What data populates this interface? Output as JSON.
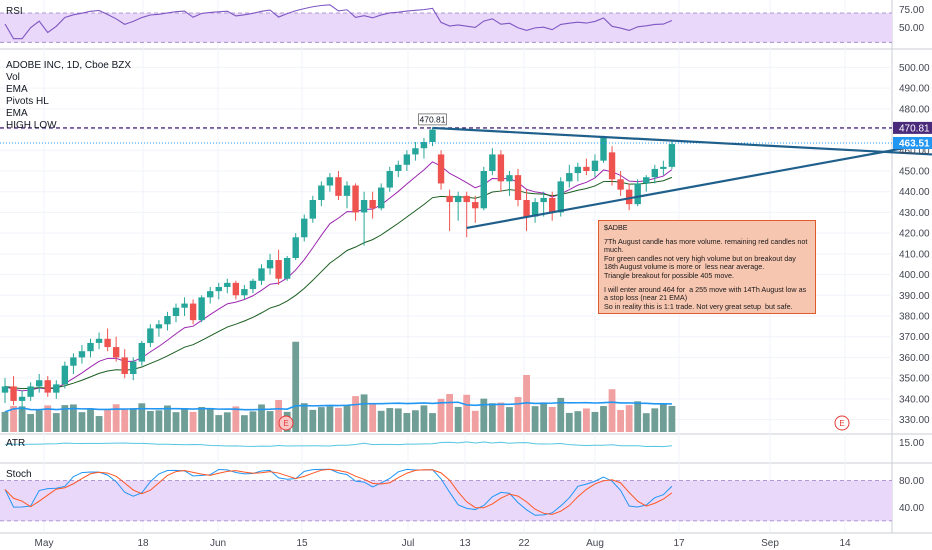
{
  "panels": {
    "rsi_label": "RSI",
    "atr_label": "ATR",
    "stoch_label": "Stoch"
  },
  "legend": [
    "ADOBE INC, 1D, Cboe BZX",
    "Vol",
    "EMA",
    "Pivots HL",
    "EMA",
    "HIGH LOW"
  ],
  "annotation": {
    "title": "$ADBE",
    "lines": [
      "7Th August candle has more volume. remaining red candles not much.",
      "For green candles not very high volume but on breakout day 18th August volume is more or  less near average.",
      "Triangle breakout for possible 405 move.",
      "",
      "I will enter around 464 for  a 255 move with 14Th August low as a stop loss (near 21 EMA)",
      "So in reality this is 1:1 trade. Not very great setup  but safe."
    ]
  },
  "event_markers": [
    "E",
    "E"
  ],
  "colors": {
    "up": "#26a69a",
    "down": "#ef5350",
    "vol_up": "#6e9e96",
    "vol_down": "#f0a0a0",
    "ema_fast": "#9c27b0",
    "ema_slow": "#1b5e20",
    "trendline": "#1f5f8b",
    "highline": "#4a2a7a",
    "vol_ma": "#2196f3",
    "atr": "#56c5e0",
    "stoch_k": "#2196f3",
    "stoch_d": "#ff5722",
    "band": "#ead8fb",
    "current_price": "#2196f3"
  },
  "chart_data": {
    "type": "candlestick",
    "symbol": "ADOBE INC",
    "interval": "1D",
    "exchange": "Cboe BZX",
    "x_ticks": [
      "May",
      "18",
      "Jun",
      "15",
      "Jul",
      "13",
      "22",
      "Aug",
      "17",
      "Sep",
      "14"
    ],
    "price_axis": {
      "ylim": [
        324,
        506
      ],
      "ticks": [
        "500.00",
        "490.00",
        "480.00",
        "470.00",
        "460.00",
        "450.00",
        "440.00",
        "430.00",
        "420.00",
        "410.00",
        "400.00",
        "390.00",
        "380.00",
        "370.00",
        "360.00",
        "350.00",
        "340.00",
        "330.00"
      ],
      "current_price": 463.51,
      "current_price_label": "463.51",
      "high_label": "470.81",
      "high_value": 470.81
    },
    "candles": [
      [
        343,
        350,
        338,
        346
      ],
      [
        346,
        351,
        337,
        339
      ],
      [
        339,
        344,
        334,
        341
      ],
      [
        341,
        348,
        339,
        346
      ],
      [
        346,
        352,
        343,
        349
      ],
      [
        349,
        351,
        341,
        343
      ],
      [
        343,
        349,
        340,
        347
      ],
      [
        347,
        358,
        345,
        356
      ],
      [
        356,
        362,
        352,
        360
      ],
      [
        360,
        366,
        357,
        363
      ],
      [
        363,
        369,
        360,
        367
      ],
      [
        367,
        372,
        364,
        369
      ],
      [
        369,
        374,
        363,
        365
      ],
      [
        365,
        370,
        358,
        360
      ],
      [
        360,
        364,
        350,
        352
      ],
      [
        352,
        360,
        349,
        358
      ],
      [
        358,
        368,
        356,
        367
      ],
      [
        367,
        376,
        365,
        374
      ],
      [
        374,
        378,
        370,
        376
      ],
      [
        376,
        382,
        373,
        380
      ],
      [
        380,
        386,
        377,
        384
      ],
      [
        384,
        389,
        380,
        386
      ],
      [
        386,
        388,
        376,
        378
      ],
      [
        378,
        390,
        377,
        389
      ],
      [
        389,
        394,
        386,
        392
      ],
      [
        392,
        396,
        388,
        394
      ],
      [
        394,
        398,
        391,
        396
      ],
      [
        396,
        397,
        388,
        390
      ],
      [
        390,
        395,
        388,
        393
      ],
      [
        393,
        398,
        391,
        397
      ],
      [
        397,
        405,
        395,
        403
      ],
      [
        403,
        410,
        400,
        407
      ],
      [
        407,
        412,
        395,
        398
      ],
      [
        398,
        409,
        397,
        408
      ],
      [
        408,
        420,
        407,
        418
      ],
      [
        418,
        429,
        416,
        427
      ],
      [
        427,
        438,
        425,
        436
      ],
      [
        436,
        445,
        433,
        443
      ],
      [
        443,
        449,
        440,
        447
      ],
      [
        447,
        450,
        436,
        438
      ],
      [
        438,
        445,
        432,
        443
      ],
      [
        443,
        444,
        426,
        430
      ],
      [
        430,
        440,
        414,
        436
      ],
      [
        436,
        440,
        427,
        432
      ],
      [
        432,
        444,
        431,
        442
      ],
      [
        442,
        452,
        440,
        450
      ],
      [
        450,
        455,
        447,
        453
      ],
      [
        453,
        460,
        450,
        458
      ],
      [
        458,
        464,
        455,
        461
      ],
      [
        461,
        466,
        456,
        464
      ],
      [
        464,
        471,
        462,
        470
      ],
      [
        458,
        460,
        441,
        444
      ],
      [
        438,
        441,
        421,
        435
      ],
      [
        435,
        440,
        426,
        438
      ],
      [
        438,
        440,
        418,
        435
      ],
      [
        435,
        438,
        425,
        432
      ],
      [
        432,
        452,
        431,
        450
      ],
      [
        450,
        461,
        448,
        458
      ],
      [
        458,
        460,
        440,
        445
      ],
      [
        445,
        450,
        438,
        448
      ],
      [
        448,
        451,
        433,
        436
      ],
      [
        436,
        441,
        421,
        428
      ],
      [
        428,
        437,
        425,
        435
      ],
      [
        435,
        440,
        428,
        437
      ],
      [
        437,
        440,
        426,
        430
      ],
      [
        430,
        447,
        428,
        445
      ],
      [
        445,
        453,
        442,
        449
      ],
      [
        449,
        454,
        445,
        452
      ],
      [
        452,
        456,
        448,
        450
      ],
      [
        450,
        458,
        447,
        455
      ],
      [
        455,
        467,
        454,
        466
      ],
      [
        459,
        462,
        443,
        446
      ],
      [
        446,
        450,
        438,
        441
      ],
      [
        441,
        444,
        431,
        434
      ],
      [
        434,
        446,
        433,
        444
      ],
      [
        444,
        448,
        440,
        447
      ],
      [
        447,
        453,
        444,
        451
      ],
      [
        451,
        455,
        448,
        452
      ],
      [
        452,
        465,
        451,
        463
      ]
    ],
    "volume_colors": "matches candle direction",
    "indicators": {
      "rsi_ticks": [
        "75.00",
        "50.00"
      ],
      "rsi_range": [
        25,
        85
      ],
      "rsi_band": [
        30,
        70
      ],
      "atr_tick": "15.00",
      "stoch_ticks": [
        "80.00",
        "40.00"
      ],
      "stoch_range": [
        5,
        100
      ],
      "stoch_band": [
        20,
        80
      ]
    },
    "trendlines": [
      {
        "name": "upper",
        "from": [
          50,
          470.8
        ],
        "to": [
          120,
          457
        ]
      },
      {
        "name": "lower",
        "from": [
          54,
          422
        ],
        "to": [
          120,
          462
        ]
      }
    ]
  }
}
